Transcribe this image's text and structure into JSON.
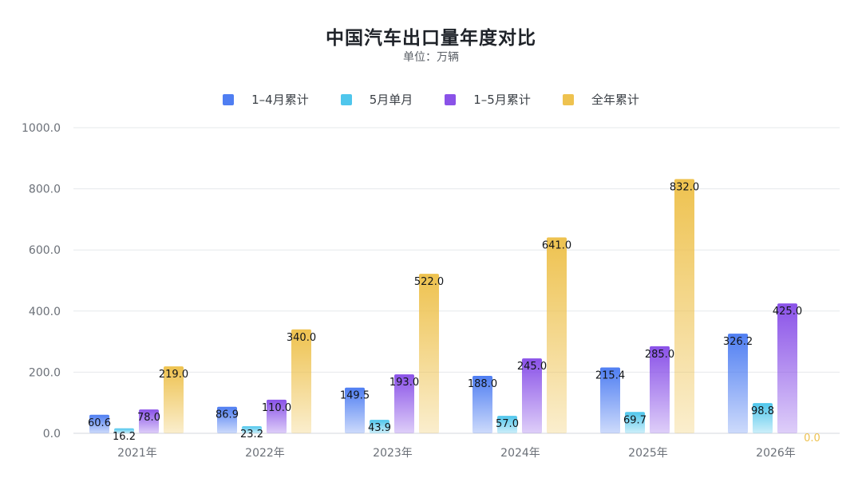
{
  "title": "中国汽车出口量年度对比",
  "subtitle": "单位：万辆",
  "colors": {
    "1-4月累计": "#4f7ef2",
    "5月单月": "#4fc6ec",
    "1-5月累计": "#8a52e8",
    "全年累计": "#eec24f"
  },
  "chart_data": {
    "type": "bar",
    "title": "中国汽车出口量年度对比",
    "subtitle": "单位：万辆",
    "categories": [
      "2021年",
      "2022年",
      "2023年",
      "2024年",
      "2025年",
      "2026年"
    ],
    "series": [
      {
        "name": "1–4月累计",
        "values": [
          60.6,
          86.9,
          149.5,
          188.0,
          215.4,
          326.2
        ]
      },
      {
        "name": "5月单月",
        "values": [
          16.2,
          23.2,
          43.9,
          57.0,
          69.7,
          98.8
        ]
      },
      {
        "name": "1–5月累计",
        "values": [
          78.0,
          110.0,
          193.0,
          245.0,
          285.0,
          425.0
        ]
      },
      {
        "name": "全年累计",
        "values": [
          219.0,
          340.0,
          522.0,
          641.0,
          832.0,
          0.0
        ]
      }
    ],
    "data_labels": [
      [
        "60.6",
        "86.9",
        "149.5",
        "188.0",
        "215.4",
        "326.2"
      ],
      [
        "16.2",
        "23.2",
        "43.9",
        "57.0",
        "69.7",
        "98.8"
      ],
      [
        "78.0",
        "110.0",
        "193.0",
        "245.0",
        "285.0",
        "425.0"
      ],
      [
        "219.0",
        "340.0",
        "522.0",
        "641.0",
        "832.0",
        "0.0"
      ]
    ],
    "y_ticks": [
      "0.0",
      "200.0",
      "400.0",
      "600.0",
      "800.0",
      "1000.0"
    ],
    "ylim": [
      0,
      1000
    ],
    "grid": true,
    "legend_position": "top-center"
  }
}
